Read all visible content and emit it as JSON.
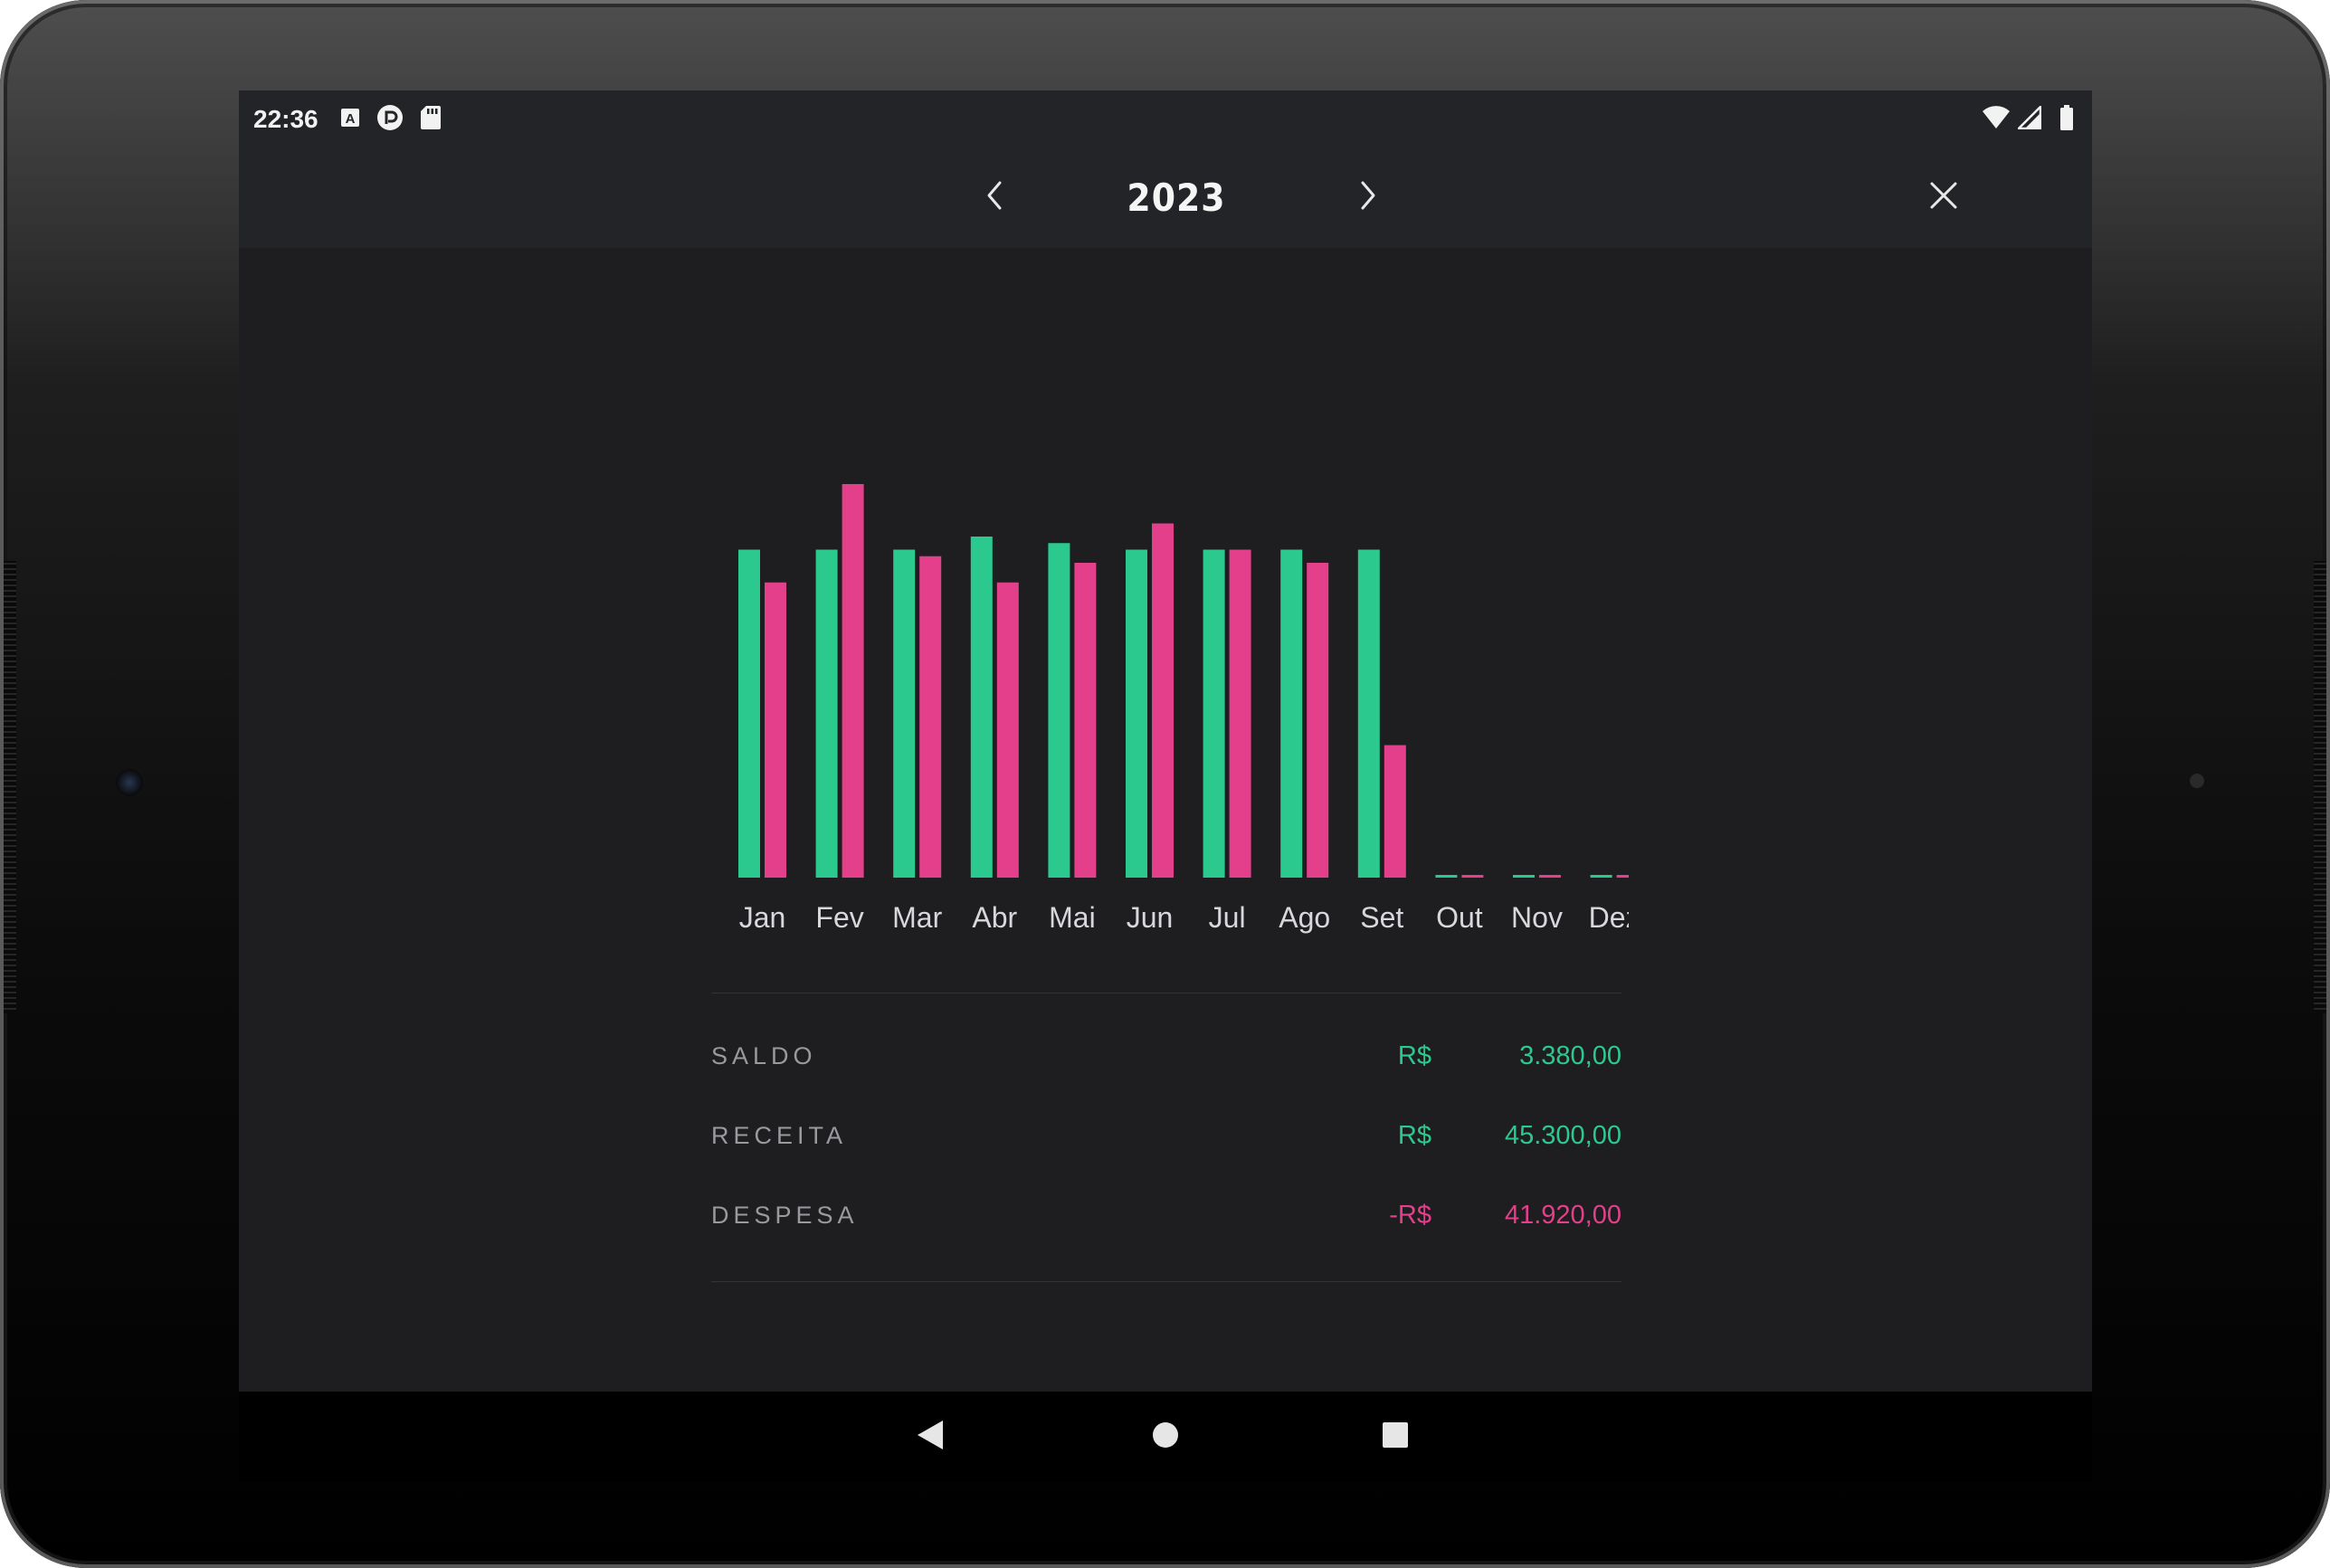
{
  "status_bar": {
    "time": "22:36",
    "left_icons": [
      "a-notification-icon",
      "pocketcasts-icon",
      "sd-card-icon"
    ],
    "right_icons": [
      "wifi-icon",
      "signal-icon",
      "battery-icon"
    ]
  },
  "header": {
    "year": "2023",
    "prev_icon": "chevron-left-icon",
    "next_icon": "chevron-right-icon",
    "close_icon": "close-icon"
  },
  "colors": {
    "income": "#2cc98f",
    "expense": "#e33f8b",
    "screen_bg": "#1e1e21",
    "header_bg": "#232428"
  },
  "chart_data": {
    "type": "bar",
    "categories": [
      "Jan",
      "Fev",
      "Mar",
      "Abr",
      "Mai",
      "Jun",
      "Jul",
      "Ago",
      "Set",
      "Out",
      "Nov",
      "Dez"
    ],
    "series": [
      {
        "values": [
          5000,
          5000,
          5000,
          5200,
          5100,
          5000,
          5000,
          5000,
          5000,
          0,
          0,
          0
        ]
      },
      {
        "values": [
          4500,
          6000,
          4900,
          4500,
          4800,
          5400,
          5000,
          4800,
          2020,
          0,
          0,
          0
        ]
      }
    ],
    "ylim": [
      0,
      6000
    ],
    "grid": false
  },
  "summary": {
    "rows": [
      {
        "label": "SALDO",
        "currency": "R$",
        "value": "3.380,00",
        "tone": "pos"
      },
      {
        "label": "RECEITA",
        "currency": "R$",
        "value": "45.300,00",
        "tone": "pos"
      },
      {
        "label": "DESPESA",
        "currency": "-R$",
        "value": "41.920,00",
        "tone": "neg"
      }
    ]
  },
  "nav_bar": {
    "icons": [
      "back-triangle-icon",
      "home-circle-icon",
      "recents-square-icon"
    ]
  }
}
